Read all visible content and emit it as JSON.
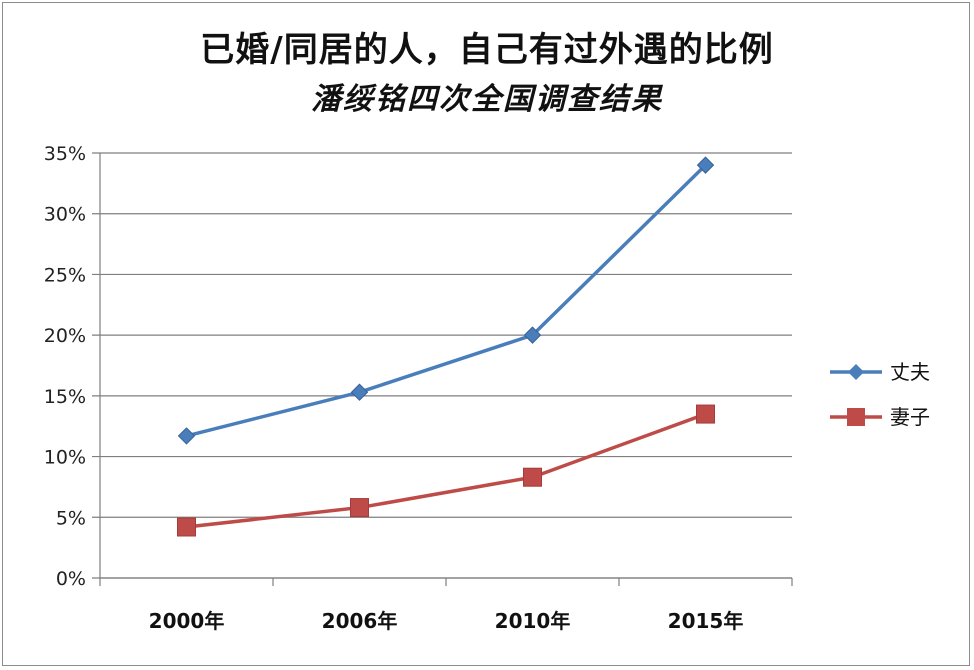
{
  "chart_data": {
    "type": "line",
    "title": "已婚/同居的人，自己有过外遇的比例",
    "subtitle": "潘绥铭四次全国调查结果",
    "categories": [
      "2000年",
      "2006年",
      "2010年",
      "2015年"
    ],
    "ylim": [
      0,
      35
    ],
    "yticks": [
      0,
      5,
      10,
      15,
      20,
      25,
      30,
      35
    ],
    "ytick_labels": [
      "0%",
      "5%",
      "10%",
      "15%",
      "20%",
      "25%",
      "30%",
      "35%"
    ],
    "grid": true,
    "legend_position": "right",
    "series": [
      {
        "name": "丈夫",
        "values": [
          11.7,
          15.3,
          20.0,
          34.0
        ],
        "color": "#4a7ebb",
        "marker": "diamond"
      },
      {
        "name": "妻子",
        "values": [
          4.2,
          5.8,
          8.3,
          13.5
        ],
        "color": "#be4b48",
        "marker": "square"
      }
    ]
  }
}
